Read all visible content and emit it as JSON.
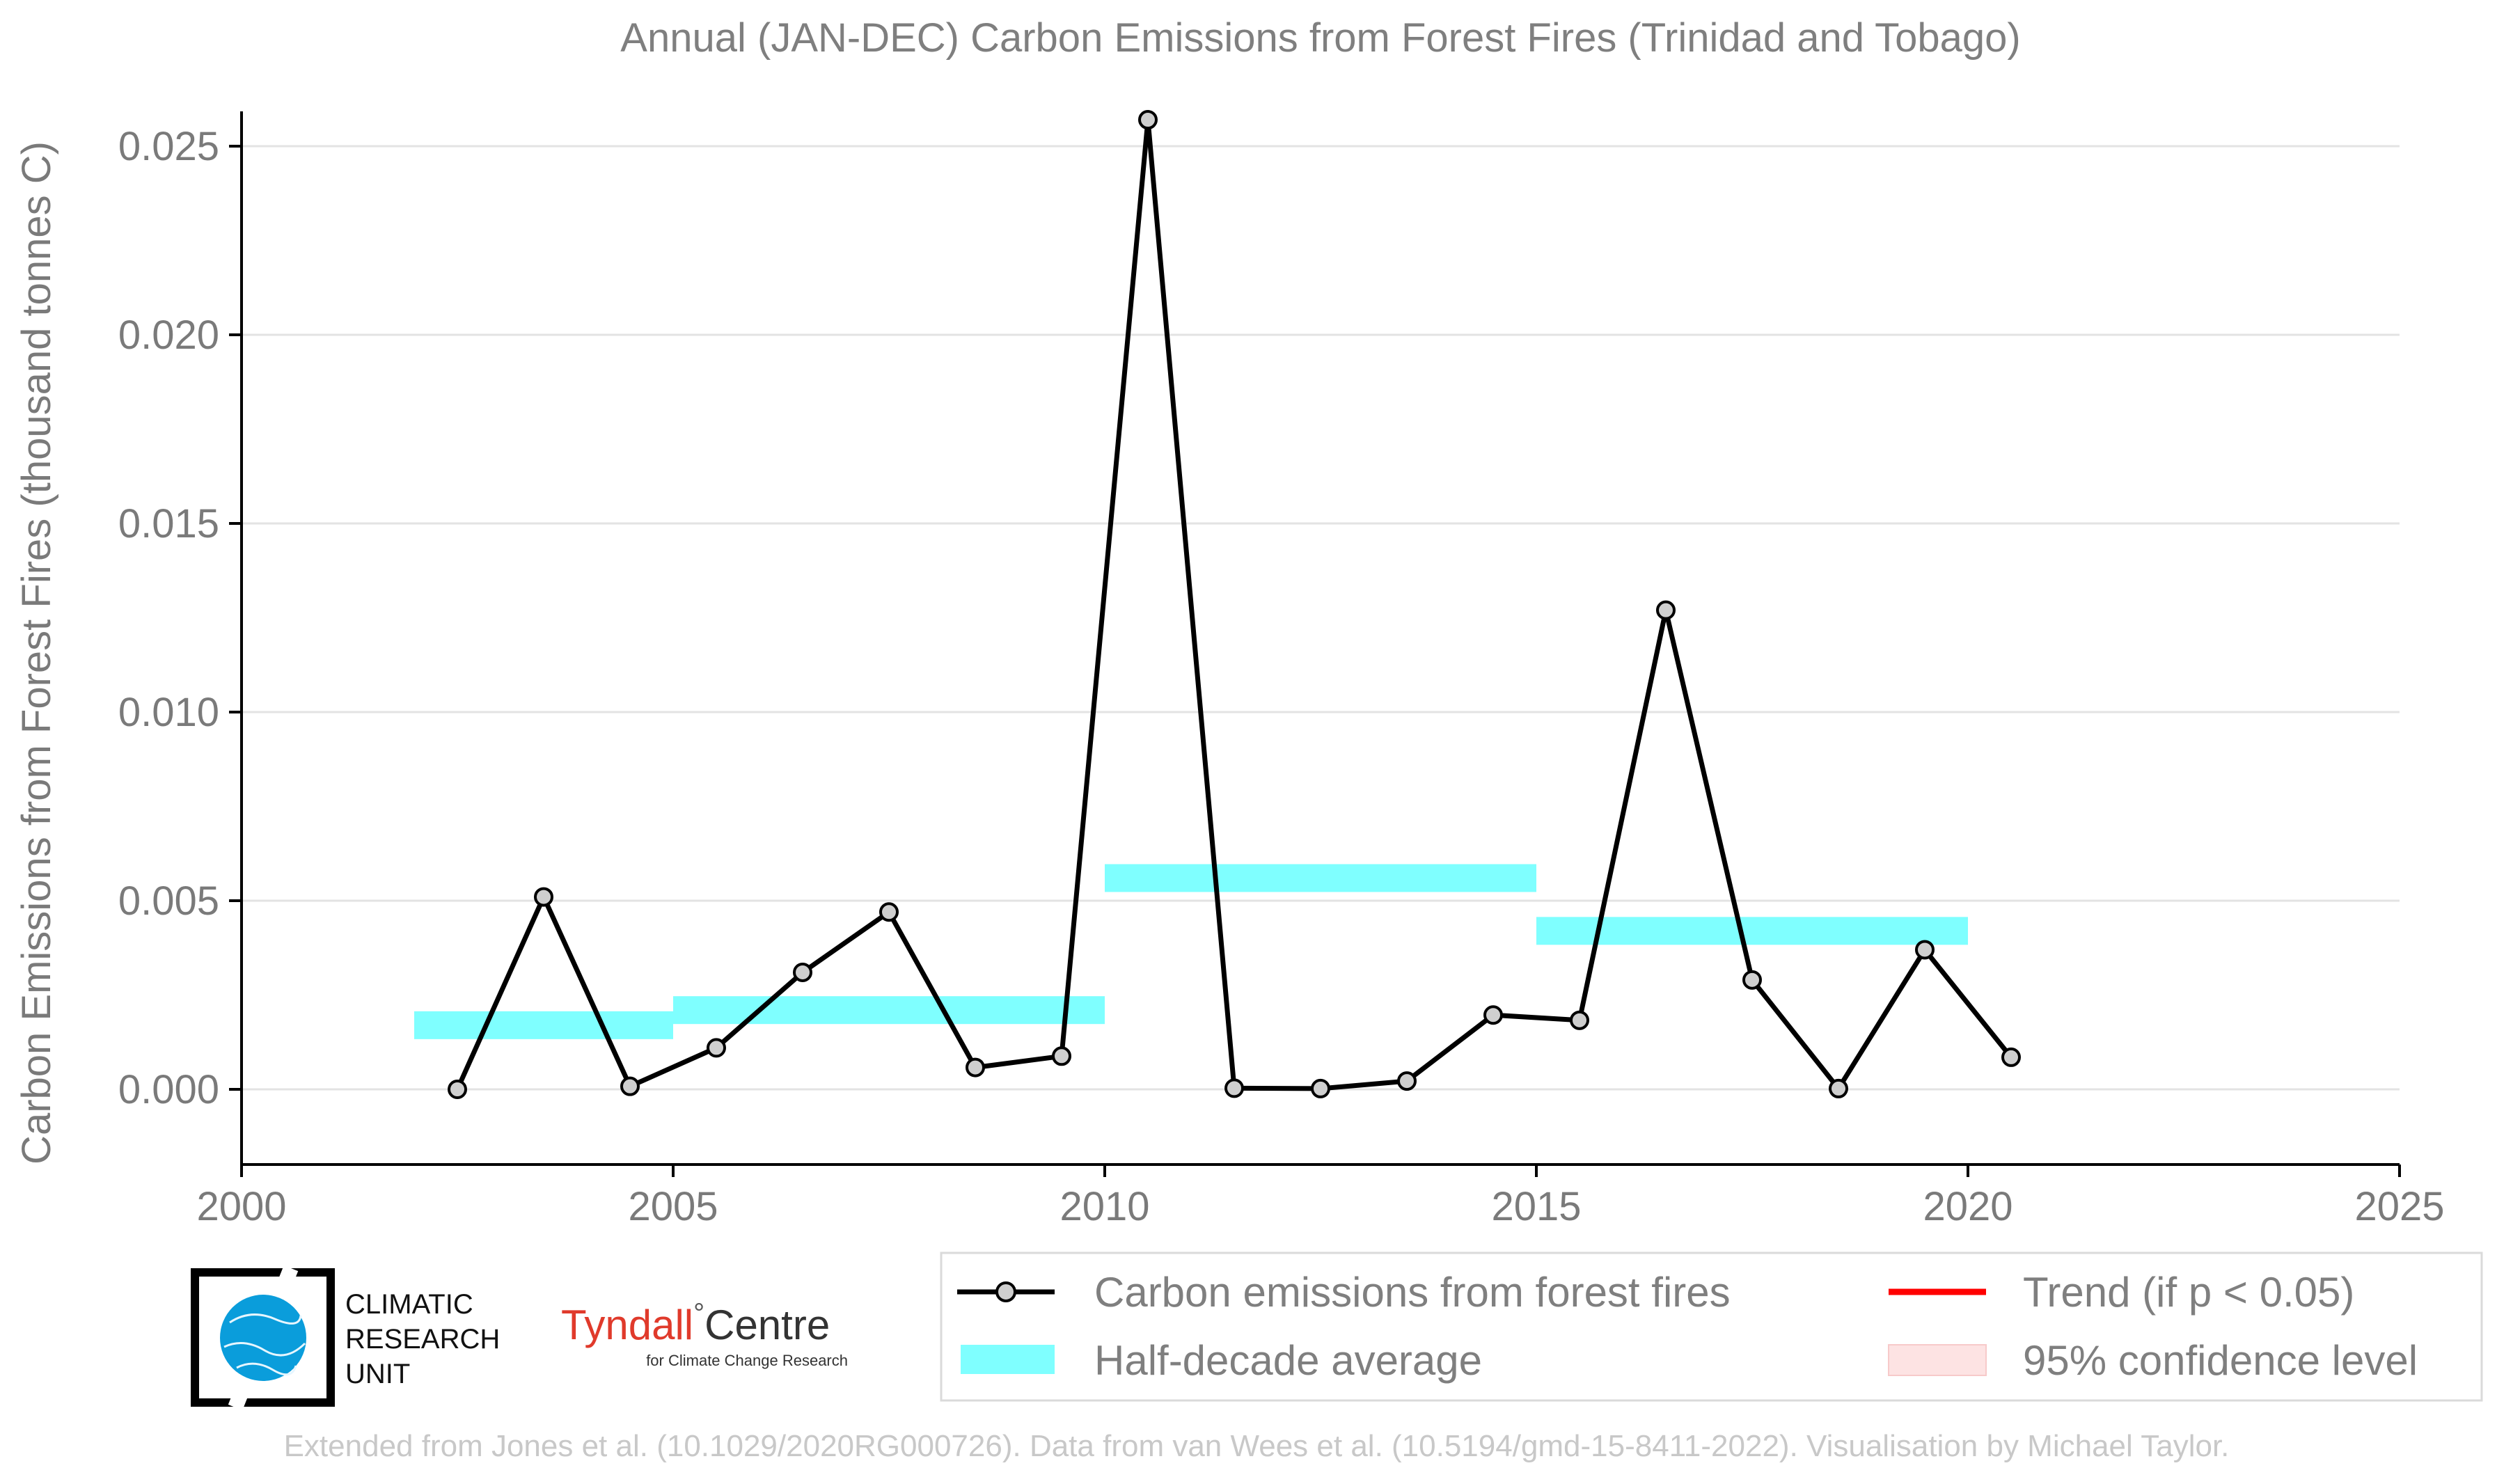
{
  "chart_data": {
    "type": "line",
    "title": "Annual (JAN-DEC) Carbon Emissions from Forest Fires (Trinidad and Tobago)",
    "xlabel": "",
    "ylabel": "Carbon Emissions from Forest Fires (thousand tonnes C)",
    "xlim": [
      2000,
      2025
    ],
    "ylim": [
      -0.002,
      0.0265
    ],
    "xticks": [
      2000,
      2005,
      2010,
      2015,
      2020,
      2025
    ],
    "xtick_labels": [
      "2000",
      "2005",
      "2010",
      "2015",
      "2020",
      "2025"
    ],
    "yticks": [
      0.0,
      0.005,
      0.01,
      0.015,
      0.02,
      0.025
    ],
    "ytick_labels": [
      "0.000",
      "0.005",
      "0.010",
      "0.015",
      "0.020",
      "0.025"
    ],
    "grid": "horizontal",
    "series": [
      {
        "name": "Carbon emissions from forest fires",
        "color": "#000000",
        "marker_fill": "#cfcfcf",
        "x": [
          2002.5,
          2003.5,
          2004.5,
          2005.5,
          2006.5,
          2007.5,
          2008.5,
          2009.5,
          2010.5,
          2011.5,
          2012.5,
          2013.5,
          2014.5,
          2015.5,
          2016.5,
          2017.5,
          2018.5,
          2019.5,
          2020.5
        ],
        "y": [
          0.0,
          0.0051,
          8e-05,
          0.0011,
          0.0031,
          0.0047,
          0.00058,
          0.00088,
          0.0257,
          3e-05,
          2e-05,
          0.00022,
          0.00197,
          0.00183,
          0.0127,
          0.0029,
          2e-05,
          0.0037,
          0.00085
        ]
      }
    ],
    "half_decade_average": {
      "name": "Half-decade average",
      "color": "#7fffff",
      "segments": [
        {
          "x0": 2002,
          "x1": 2005,
          "y": 0.0017
        },
        {
          "x0": 2005,
          "x1": 2010,
          "y": 0.0021
        },
        {
          "x0": 2010,
          "x1": 2015,
          "y": 0.0056
        },
        {
          "x0": 2015,
          "x1": 2020,
          "y": 0.0042
        }
      ]
    },
    "legend": {
      "placement": "bottom-right",
      "entries": [
        {
          "label": "Carbon emissions from forest fires",
          "kind": "line-marker",
          "color": "#000000"
        },
        {
          "label": "Trend (if p < 0.05)",
          "kind": "line",
          "color": "#ff0000"
        },
        {
          "label": "Half-decade average",
          "kind": "band",
          "color": "#7fffff"
        },
        {
          "label": "95% confidence level",
          "kind": "patch",
          "color": "#fde3e3"
        }
      ]
    }
  },
  "logos": {
    "cru_lines": [
      "CLIMATIC",
      "RESEARCH",
      "UNIT"
    ],
    "tyndall_main": "Tyndall",
    "tyndall_degree": "°",
    "tyndall_centre": "Centre",
    "tyndall_sub": "for Climate Change Research"
  },
  "credit": "Extended from Jones et al. (10.1029/2020RG000726). Data from van Wees et al. (10.5194/gmd-15-8411-2022). Visualisation by Michael Taylor."
}
